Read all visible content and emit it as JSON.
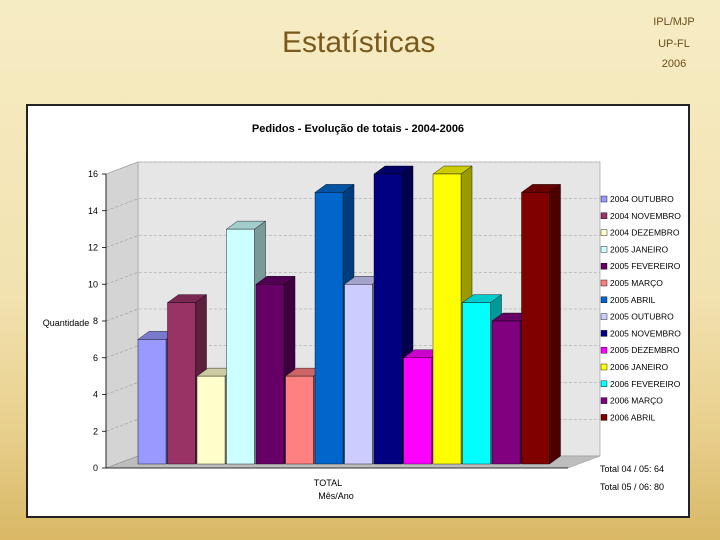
{
  "slide": {
    "title": "Estatísticas",
    "corner_lines": [
      "IPL/MJP",
      "UP-FL",
      "2006"
    ]
  },
  "chart_data": {
    "type": "bar",
    "title": "Pedidos - Evolução de totais - 2004-2006",
    "xlabel": "Mês/Ano",
    "ylabel": "Quantidade",
    "categories": [
      "TOTAL"
    ],
    "ylim": [
      0,
      16
    ],
    "yticks": [
      0,
      2,
      4,
      6,
      8,
      10,
      12,
      14,
      16
    ],
    "grid": true,
    "legend_position": "right",
    "series": [
      {
        "name": "2004 OUTUBRO",
        "values": [
          7
        ],
        "color": "#9999ff"
      },
      {
        "name": "2004 NOVEMBRO",
        "values": [
          9
        ],
        "color": "#993366"
      },
      {
        "name": "2004 DEZEMBRO",
        "values": [
          5
        ],
        "color": "#ffffcc"
      },
      {
        "name": "2005 JANEIRO",
        "values": [
          13
        ],
        "color": "#ccffff"
      },
      {
        "name": "2005 FEVEREIRO",
        "values": [
          10
        ],
        "color": "#660066"
      },
      {
        "name": "2005 MARÇO",
        "values": [
          5
        ],
        "color": "#ff8080"
      },
      {
        "name": "2005 ABRIL",
        "values": [
          15
        ],
        "color": "#0066cc"
      },
      {
        "name": "2005 OUTUBRO",
        "values": [
          10
        ],
        "color": "#ccccff"
      },
      {
        "name": "2005 NOVEMBRO",
        "values": [
          16
        ],
        "color": "#000080"
      },
      {
        "name": "2005 DEZEMBRO",
        "values": [
          6
        ],
        "color": "#ff00ff"
      },
      {
        "name": "2006 JANEIRO",
        "values": [
          16
        ],
        "color": "#ffff00"
      },
      {
        "name": "2006 FEVEREIRO",
        "values": [
          9
        ],
        "color": "#00ffff"
      },
      {
        "name": "2006 MARÇO",
        "values": [
          8
        ],
        "color": "#800080"
      },
      {
        "name": "2006 ABRIL",
        "values": [
          15
        ],
        "color": "#800000"
      }
    ],
    "annotations": [
      "Total 04 / 05: 64",
      "Total 05 / 06: 80"
    ]
  }
}
